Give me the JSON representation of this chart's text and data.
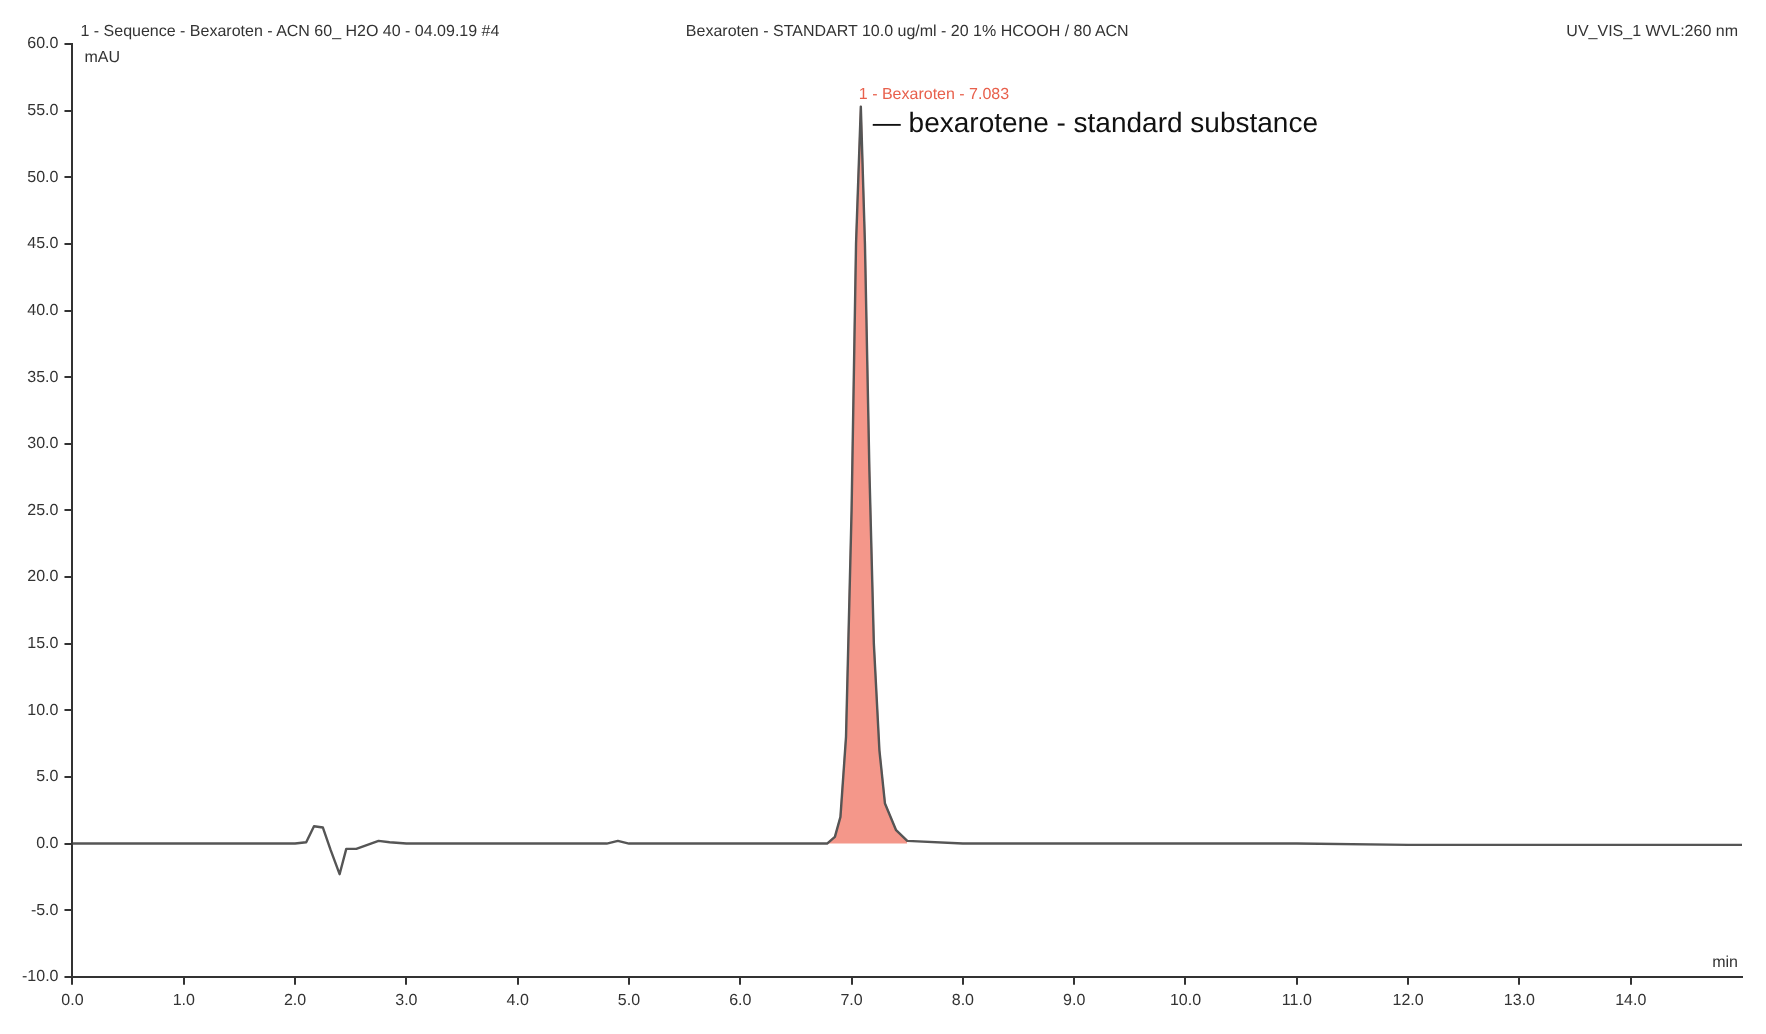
{
  "chart_data": {
    "type": "line",
    "title": "1 - Sequence - Bexaroten - ACN 60_ H2O 40 - 04.09.19 #4",
    "subtitle": "Bexaroten - STANDART 10.0 ug/ml - 20 1% HCOOH / 80 ACN",
    "xlabel": "min",
    "ylabel": "mAU",
    "annotations": [
      "UV_VIS_1 WVL:260 nm",
      {
        "text": "1 - Bexaroten - 7.083",
        "x": 7.083,
        "y": 55.3
      },
      {
        "text": "— bexarotene - standard substance",
        "x": 7.083,
        "y": 55.3
      }
    ],
    "xlim": [
      0,
      15
    ],
    "ylim": [
      -10,
      60
    ],
    "xticks": [
      {
        "value": 0,
        "label": "0.0"
      },
      {
        "value": 1,
        "label": "1.0"
      },
      {
        "value": 2,
        "label": "2.0"
      },
      {
        "value": 3,
        "label": "3.0"
      },
      {
        "value": 4,
        "label": "4.0"
      },
      {
        "value": 5,
        "label": "5.0"
      },
      {
        "value": 6,
        "label": "6.0"
      },
      {
        "value": 7,
        "label": "7.0"
      },
      {
        "value": 8,
        "label": "8.0"
      },
      {
        "value": 9,
        "label": "9.0"
      },
      {
        "value": 10,
        "label": "10.0"
      },
      {
        "value": 11,
        "label": "11.0"
      },
      {
        "value": 12,
        "label": "12.0"
      },
      {
        "value": 13,
        "label": "13.0"
      },
      {
        "value": 14,
        "label": "14.0"
      }
    ],
    "yticks": [
      {
        "value": -10,
        "label": "-10.0"
      },
      {
        "value": -5,
        "label": "-5.0"
      },
      {
        "value": 0,
        "label": "0.0"
      },
      {
        "value": 5,
        "label": "5.0"
      },
      {
        "value": 10,
        "label": "10.0"
      },
      {
        "value": 15,
        "label": "15.0"
      },
      {
        "value": 20,
        "label": "20.0"
      },
      {
        "value": 25,
        "label": "25.0"
      },
      {
        "value": 30,
        "label": "30.0"
      },
      {
        "value": 35,
        "label": "35.0"
      },
      {
        "value": 40,
        "label": "40.0"
      },
      {
        "value": 45,
        "label": "45.0"
      },
      {
        "value": 50,
        "label": "50.0"
      },
      {
        "value": 55,
        "label": "55.0"
      },
      {
        "value": 60,
        "label": "60.0"
      }
    ],
    "grid": false,
    "legend": false,
    "marker": "none",
    "line_style": "solid",
    "series": [
      {
        "type": "area",
        "color": "#f4978a",
        "x": [
          6.78,
          6.85,
          6.9,
          6.95,
          7.0,
          7.04,
          7.083,
          7.12,
          7.16,
          7.2,
          7.25,
          7.3,
          7.4,
          7.5
        ],
        "values": [
          0,
          0.5,
          2,
          8,
          25,
          45,
          55.3,
          45,
          28,
          15,
          7,
          3,
          1,
          0.2
        ]
      },
      {
        "color": "#555555",
        "x": [
          0,
          1,
          2,
          2.1,
          2.17,
          2.25,
          2.32,
          2.4,
          2.46,
          2.55,
          2.65,
          2.75,
          2.85,
          3.0,
          4.0,
          4.8,
          4.9,
          5.0,
          6.0,
          6.78,
          6.85,
          6.9,
          6.95,
          7.0,
          7.04,
          7.083,
          7.12,
          7.16,
          7.2,
          7.25,
          7.3,
          7.4,
          7.5,
          8,
          9,
          10,
          11,
          12,
          13,
          14,
          15
        ],
        "values": [
          0,
          0,
          0,
          0.1,
          1.3,
          1.2,
          -0.5,
          -2.3,
          -0.4,
          -0.4,
          -0.1,
          0.2,
          0.1,
          0,
          0,
          0,
          0.2,
          0,
          0,
          0,
          0.5,
          2,
          8,
          25,
          45,
          55.3,
          45,
          28,
          15,
          7,
          3,
          1,
          0.2,
          0,
          0,
          0,
          0,
          -0.1,
          -0.1,
          -0.1,
          -0.1
        ]
      }
    ]
  }
}
